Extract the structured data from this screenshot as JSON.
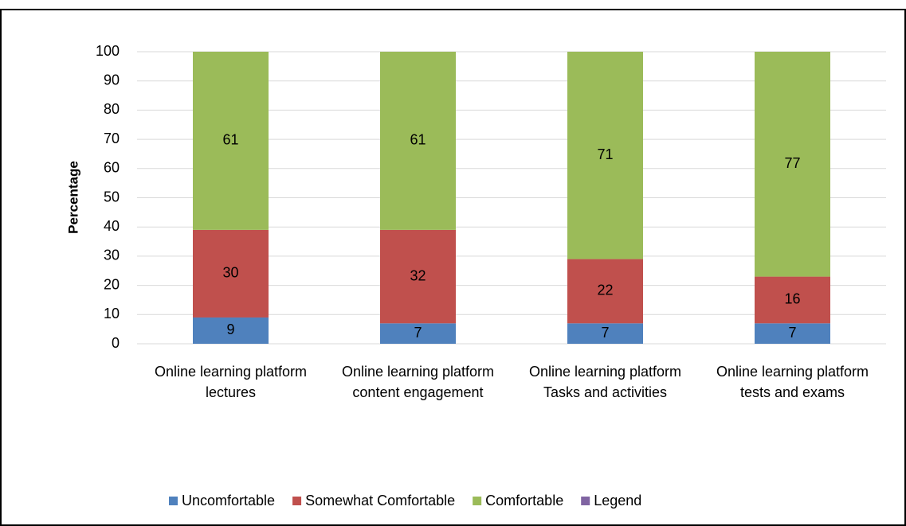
{
  "chart_data": {
    "type": "stacked_bar",
    "y_label": "Percentage",
    "categories": [
      "Online learning platform lectures",
      "Online learning platform content engagement",
      "Online learning platform Tasks and activities",
      "Online learning platform tests and exams"
    ],
    "series": [
      {
        "name": "Uncomfortable",
        "color": "#4f81bd",
        "values": [
          9,
          7,
          7,
          7
        ]
      },
      {
        "name": "Somewhat Comfortable",
        "color": "#c0504d",
        "values": [
          30,
          32,
          22,
          16
        ]
      },
      {
        "name": "Comfortable",
        "color": "#9bbb59",
        "values": [
          61,
          61,
          71,
          77
        ]
      },
      {
        "name": "Legend",
        "color": "#8064a2",
        "values": [
          null,
          null,
          null,
          null
        ]
      }
    ],
    "ylim": [
      0,
      100
    ],
    "yticks": [
      0,
      10,
      20,
      30,
      40,
      50,
      60,
      70,
      80,
      90,
      100
    ],
    "grid": true,
    "legend": "bottom"
  }
}
